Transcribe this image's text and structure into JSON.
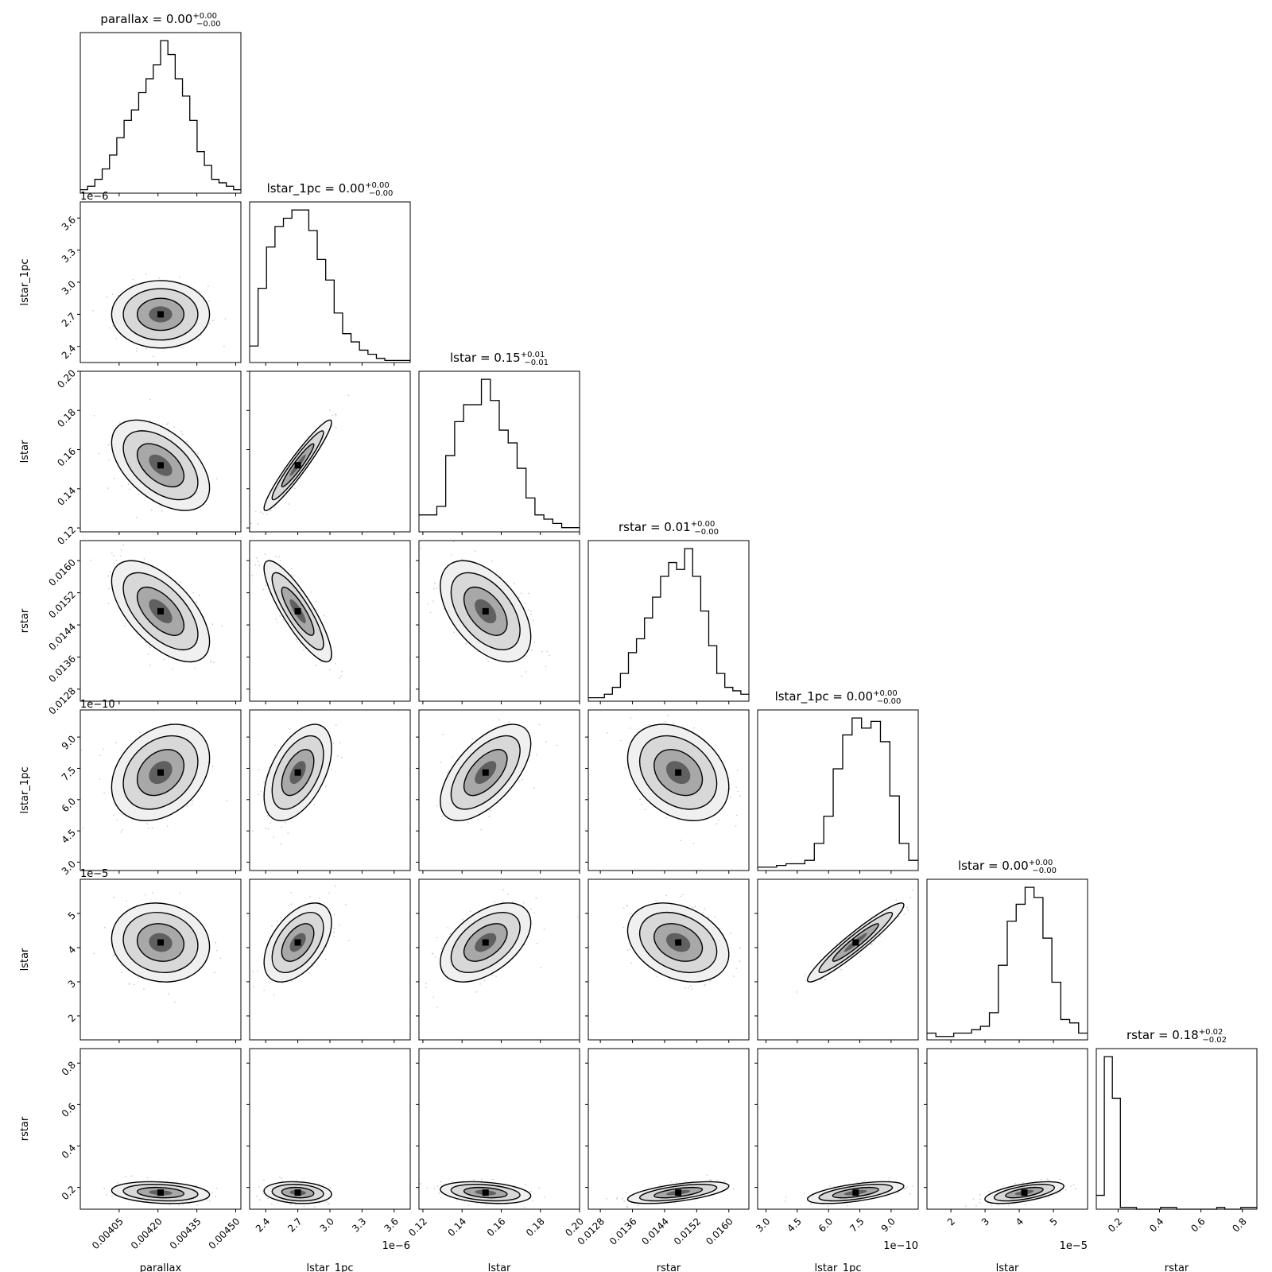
{
  "chart_data": {
    "type": "corner",
    "variables": [
      {
        "name": "parallax",
        "title": "parallax = 0.00",
        "err_plus": "+0.00",
        "err_minus": "−0.00",
        "range": [
          0.0039,
          0.00452
        ],
        "ticks": [
          0.00405,
          0.0042,
          0.00435,
          0.0045
        ],
        "tick_labels": [
          "0.00405",
          "0.00420",
          "0.00435",
          "0.00450"
        ],
        "exponent": "",
        "mean": 0.00421,
        "sd": 9e-05,
        "hist": [
          1,
          2,
          4,
          7,
          11,
          16,
          21,
          24,
          29,
          33,
          37,
          44,
          40,
          33,
          28,
          21,
          12,
          8,
          4,
          3,
          2,
          1
        ]
      },
      {
        "name": "lstar_1pc",
        "title": "lstar_1pc = 0.00",
        "err_plus": "+0.00",
        "err_minus": "−0.00",
        "range": [
          2.25,
          3.75
        ],
        "ticks": [
          2.4,
          2.7,
          3.0,
          3.3,
          3.6
        ],
        "tick_labels": [
          "2.4",
          "2.7",
          "3.0",
          "3.3",
          "3.6"
        ],
        "exponent": "1e−6",
        "mean": 2.7,
        "sd": 0.15,
        "hist": [
          4,
          18,
          28,
          33,
          35,
          37,
          37,
          32,
          25,
          20,
          12,
          7,
          5,
          3,
          2,
          1,
          0.5,
          0.5,
          0.5
        ]
      },
      {
        "name": "lstar",
        "title": "lstar = 0.15",
        "err_plus": "+0.01",
        "err_minus": "−0.01",
        "range": [
          0.118,
          0.2
        ],
        "ticks": [
          0.12,
          0.14,
          0.16,
          0.18,
          0.2
        ],
        "tick_labels": [
          "0.12",
          "0.14",
          "0.16",
          "0.18",
          "0.20"
        ],
        "exponent": "",
        "mean": 0.152,
        "sd": 0.011,
        "hist": [
          4,
          4,
          6,
          18,
          26,
          30,
          30,
          36,
          31,
          24,
          21,
          15,
          8,
          4,
          3,
          2,
          1,
          1
        ]
      },
      {
        "name": "rstar",
        "title": "rstar = 0.01",
        "err_plus": "+0.00",
        "err_minus": "−0.00",
        "range": [
          0.0125,
          0.0165
        ],
        "ticks": [
          0.0128,
          0.0136,
          0.0144,
          0.0152,
          0.016
        ],
        "tick_labels": [
          "0.0128",
          "0.0136",
          "0.0144",
          "0.0152",
          "0.0160"
        ],
        "exponent": "",
        "mean": 0.01474,
        "sd": 0.0006,
        "hist": [
          1,
          1,
          2,
          4,
          8,
          14,
          18,
          24,
          30,
          36,
          40,
          38,
          44,
          36,
          26,
          16,
          8,
          4,
          3,
          2
        ]
      },
      {
        "name": "lstar_1pc",
        "title": "lstar_1pc = 0.00",
        "err_plus": "+0.00",
        "err_minus": "−0.00",
        "range": [
          2.6,
          10.3
        ],
        "ticks": [
          3.0,
          4.5,
          6.0,
          7.5,
          9.0
        ],
        "tick_labels": [
          "3.0",
          "4.5",
          "6.0",
          "7.5",
          "9.0"
        ],
        "exponent": "1e−10",
        "mean": 7.3,
        "sd": 1.1,
        "hist": [
          1,
          1,
          1.5,
          2,
          2,
          3,
          8,
          16,
          30,
          40,
          45,
          42,
          44,
          38,
          22,
          8,
          3
        ]
      },
      {
        "name": "lstar",
        "title": "lstar = 0.00",
        "err_plus": "+0.00",
        "err_minus": "−0.00",
        "range": [
          1.3,
          6.0
        ],
        "ticks": [
          2,
          3,
          4,
          5
        ],
        "tick_labels": [
          "2",
          "3",
          "4",
          "5"
        ],
        "exponent": "1e−5",
        "mean": 4.15,
        "sd": 0.55,
        "hist": [
          2,
          1,
          1,
          2,
          2,
          3,
          4,
          8,
          22,
          35,
          40,
          45,
          42,
          30,
          17,
          6,
          5,
          2
        ]
      },
      {
        "name": "rstar",
        "title": "rstar = 0.18",
        "err_plus": "+0.02",
        "err_minus": "−0.02",
        "range": [
          0.095,
          0.87
        ],
        "ticks": [
          0.2,
          0.4,
          0.6,
          0.8
        ],
        "tick_labels": [
          "0.2",
          "0.4",
          "0.6",
          "0.8"
        ],
        "exponent": "",
        "mean": 0.175,
        "sd": 0.025,
        "hist": [
          4,
          44,
          32,
          0.5,
          0.5,
          0,
          0,
          0,
          0.5,
          0.5,
          0,
          0,
          0,
          0,
          0,
          0.5,
          0,
          0,
          0.5,
          0.5
        ]
      }
    ],
    "correlations": [
      [
        1,
        0,
        -0.5,
        -0.6,
        0.3,
        -0.1,
        -0.2
      ],
      [
        0,
        1,
        0.95,
        -0.85,
        0.5,
        0.5,
        -0.15
      ],
      [
        -0.5,
        0.95,
        1,
        -0.5,
        0.6,
        0.5,
        -0.3
      ],
      [
        -0.6,
        -0.85,
        -0.5,
        1,
        -0.3,
        -0.3,
        0.6
      ],
      [
        0.3,
        0.5,
        0.6,
        -0.3,
        1,
        0.95,
        0.6
      ],
      [
        -0.1,
        0.5,
        0.5,
        -0.3,
        0.95,
        1,
        0.6
      ],
      [
        -0.2,
        -0.15,
        -0.3,
        0.6,
        0.6,
        0.6,
        1
      ]
    ],
    "grid": false,
    "legend": "none"
  }
}
